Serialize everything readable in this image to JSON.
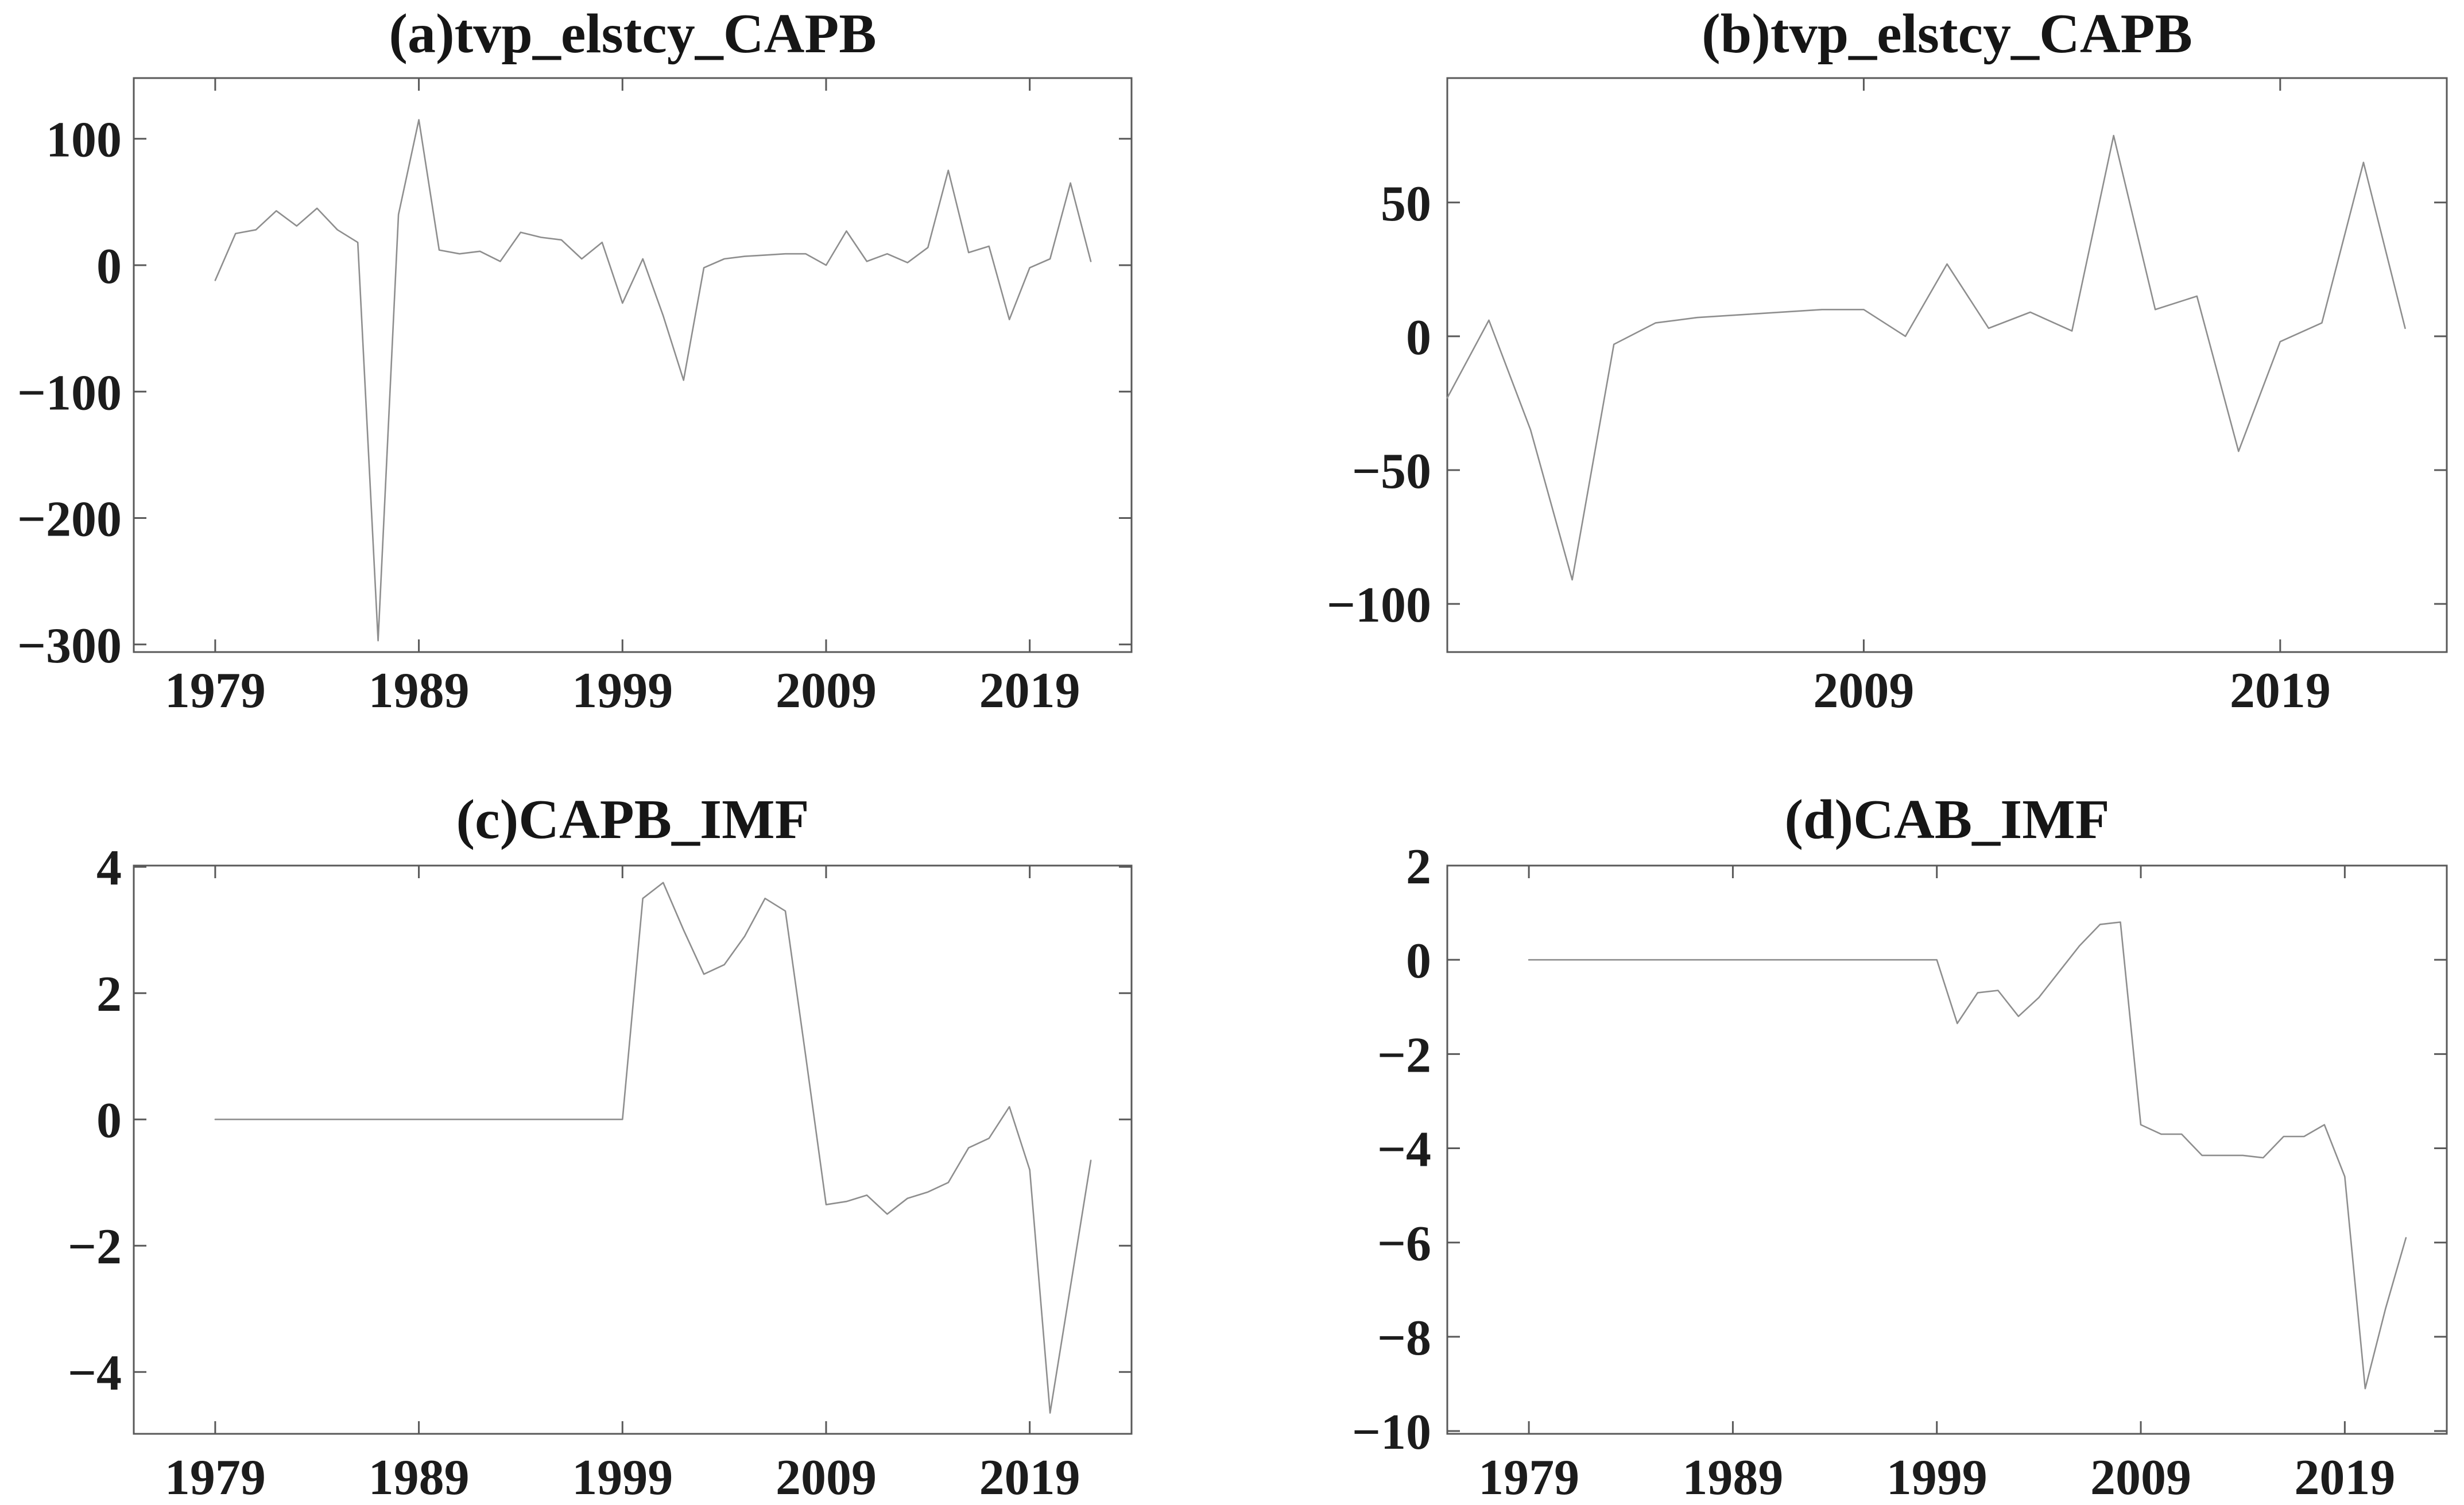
{
  "figure": {
    "background": "#ffffff",
    "rows": 2,
    "cols": 2
  },
  "colors": {
    "series_line": "#8e8e8e",
    "axis_box": "#595959",
    "tick_mark": "#595959",
    "label_text": "#1c1c1c",
    "background": "#ffffff"
  },
  "chart_data": [
    {
      "id": "a",
      "type": "line",
      "title": "(a)tvp_elstcy_CAPB",
      "xlabel": "",
      "ylabel": "",
      "grid": false,
      "legend": null,
      "x_start": 1979,
      "x_step": 1,
      "xlim": [
        1975,
        2024
      ],
      "ylim": [
        -306,
        148
      ],
      "xticks": [
        1979,
        1989,
        1999,
        2009,
        2019
      ],
      "yticks": [
        100,
        0,
        -100,
        -200,
        -300
      ],
      "values": [
        -12,
        25,
        28,
        43,
        31,
        45,
        28,
        18,
        -297,
        40,
        115,
        12,
        9,
        11,
        3,
        26,
        22,
        20,
        5,
        18,
        -30,
        5,
        -40,
        -91,
        -2,
        5,
        7,
        8,
        9,
        9,
        0,
        27,
        3,
        9,
        2,
        14,
        75,
        10,
        15,
        -43,
        -2,
        5,
        65,
        3
      ]
    },
    {
      "id": "b",
      "type": "line",
      "title": "(b)tvp_elstcy_CAPB",
      "xlabel": "",
      "ylabel": "",
      "grid": false,
      "legend": null,
      "x_start": 1999,
      "x_step": 1,
      "xlim": [
        1999,
        2023
      ],
      "ylim": [
        -118,
        96.5
      ],
      "xticks": [
        2009,
        2019
      ],
      "yticks": [
        50,
        0,
        -50,
        -100
      ],
      "values": [
        -23,
        6,
        -35,
        -91,
        -3,
        5,
        7,
        8,
        9,
        10,
        10,
        0,
        27,
        3,
        9,
        2,
        75,
        10,
        15,
        -43,
        -2,
        5,
        65,
        3
      ]
    },
    {
      "id": "c",
      "type": "line",
      "title": "(c)CAPB_IMF",
      "xlabel": "",
      "ylabel": "",
      "grid": false,
      "legend": null,
      "x_start": 1979,
      "x_step": 1,
      "xlim": [
        1975,
        2024
      ],
      "ylim": [
        -4.98,
        4.02
      ],
      "xticks": [
        1979,
        1989,
        1999,
        2009,
        2019
      ],
      "yticks": [
        4,
        2,
        0,
        -2,
        -4
      ],
      "values": [
        0,
        0,
        0,
        0,
        0,
        0,
        0,
        0,
        0,
        0,
        0,
        0,
        0,
        0,
        0,
        0,
        0,
        0,
        0,
        0,
        0,
        3.5,
        3.75,
        3.0,
        2.3,
        2.45,
        2.9,
        3.5,
        3.3,
        1.0,
        -1.35,
        -1.3,
        -1.2,
        -1.5,
        -1.25,
        -1.15,
        -1.0,
        -0.45,
        -0.3,
        0.2,
        -0.8,
        -4.65,
        -2.65,
        -0.65
      ]
    },
    {
      "id": "d",
      "type": "line",
      "title": "(d)CAB_IMF",
      "xlabel": "",
      "ylabel": "",
      "grid": false,
      "legend": null,
      "x_start": 1979,
      "x_step": 1,
      "xlim": [
        1975,
        2024
      ],
      "ylim": [
        -10.06,
        2.0
      ],
      "xticks": [
        1979,
        1989,
        1999,
        2009,
        2019
      ],
      "yticks": [
        2,
        0,
        -2,
        -4,
        -6,
        -8,
        -10
      ],
      "values": [
        0,
        0,
        0,
        0,
        0,
        0,
        0,
        0,
        0,
        0,
        0,
        0,
        0,
        0,
        0,
        0,
        0,
        0,
        0,
        0,
        0,
        -1.35,
        -0.7,
        -0.65,
        -1.2,
        -0.8,
        -0.25,
        0.3,
        0.75,
        0.8,
        -3.5,
        -3.7,
        -3.7,
        -4.15,
        -4.15,
        -4.15,
        -4.2,
        -3.75,
        -3.75,
        -3.5,
        -4.6,
        -9.1,
        -7.4,
        -5.9
      ]
    }
  ]
}
